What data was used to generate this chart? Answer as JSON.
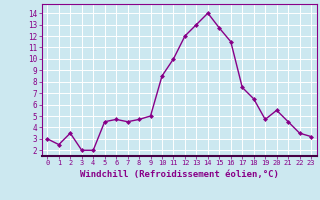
{
  "x": [
    0,
    1,
    2,
    3,
    4,
    5,
    6,
    7,
    8,
    9,
    10,
    11,
    12,
    13,
    14,
    15,
    16,
    17,
    18,
    19,
    20,
    21,
    22,
    23
  ],
  "y": [
    3.0,
    2.5,
    3.5,
    2.0,
    2.0,
    4.5,
    4.7,
    4.5,
    4.7,
    5.0,
    8.5,
    10.0,
    12.0,
    13.0,
    14.0,
    12.7,
    11.5,
    7.5,
    6.5,
    4.7,
    5.5,
    4.5,
    3.5,
    3.2
  ],
  "line_color": "#880088",
  "marker": "D",
  "marker_size": 2.0,
  "linewidth": 1.0,
  "xlabel": "Windchill (Refroidissement éolien,°C)",
  "xtick_labels": [
    "0",
    "1",
    "2",
    "3",
    "4",
    "5",
    "6",
    "7",
    "8",
    "9",
    "10",
    "11",
    "12",
    "13",
    "14",
    "15",
    "16",
    "17",
    "18",
    "19",
    "20",
    "21",
    "22",
    "23"
  ],
  "ytick_vals": [
    2,
    3,
    4,
    5,
    6,
    7,
    8,
    9,
    10,
    11,
    12,
    13,
    14
  ],
  "ytick_labels": [
    "2",
    "3",
    "4",
    "5",
    "6",
    "7",
    "8",
    "9",
    "10",
    "11",
    "12",
    "13",
    "14"
  ],
  "ylim": [
    1.5,
    14.8
  ],
  "xlim": [
    -0.5,
    23.5
  ],
  "bg_color": "#cce8f0",
  "grid_color": "#ffffff",
  "label_color": "#880088"
}
